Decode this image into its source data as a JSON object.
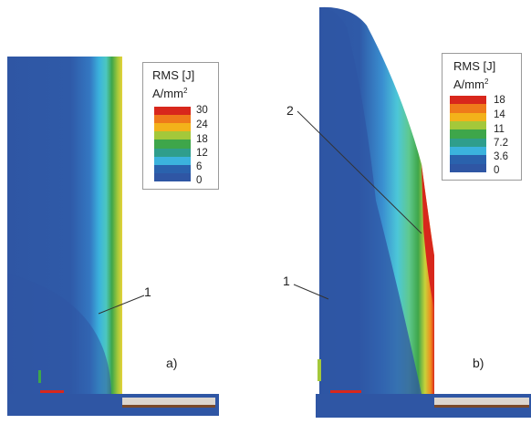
{
  "panels": [
    {
      "id": "a",
      "tag": "a)",
      "markers": [
        "1"
      ],
      "legend": {
        "title": "RMS [J]",
        "unit_base": "A/mm",
        "unit_exp": "2",
        "ticks": [
          "30",
          "24",
          "18",
          "12",
          "6",
          "0"
        ],
        "colors": [
          "#d8271c",
          "#ef7a1a",
          "#f3b21a",
          "#a4c83a",
          "#3ea64a",
          "#2f9e8c",
          "#3bb3dd",
          "#2a62ad",
          "#2f56a4"
        ]
      }
    },
    {
      "id": "b",
      "tag": "b)",
      "markers": [
        "2",
        "1"
      ],
      "legend": {
        "title": "RMS [J]",
        "unit_base": "A/mm",
        "unit_exp": "2",
        "ticks": [
          "18",
          "14",
          "11",
          "7.2",
          "3.6",
          "0"
        ],
        "colors": [
          "#d8271c",
          "#ef7a1a",
          "#f3b21a",
          "#a4c83a",
          "#3ea64a",
          "#2f9e8c",
          "#3bb3dd",
          "#2a62ad",
          "#2f56a4"
        ]
      }
    }
  ]
}
